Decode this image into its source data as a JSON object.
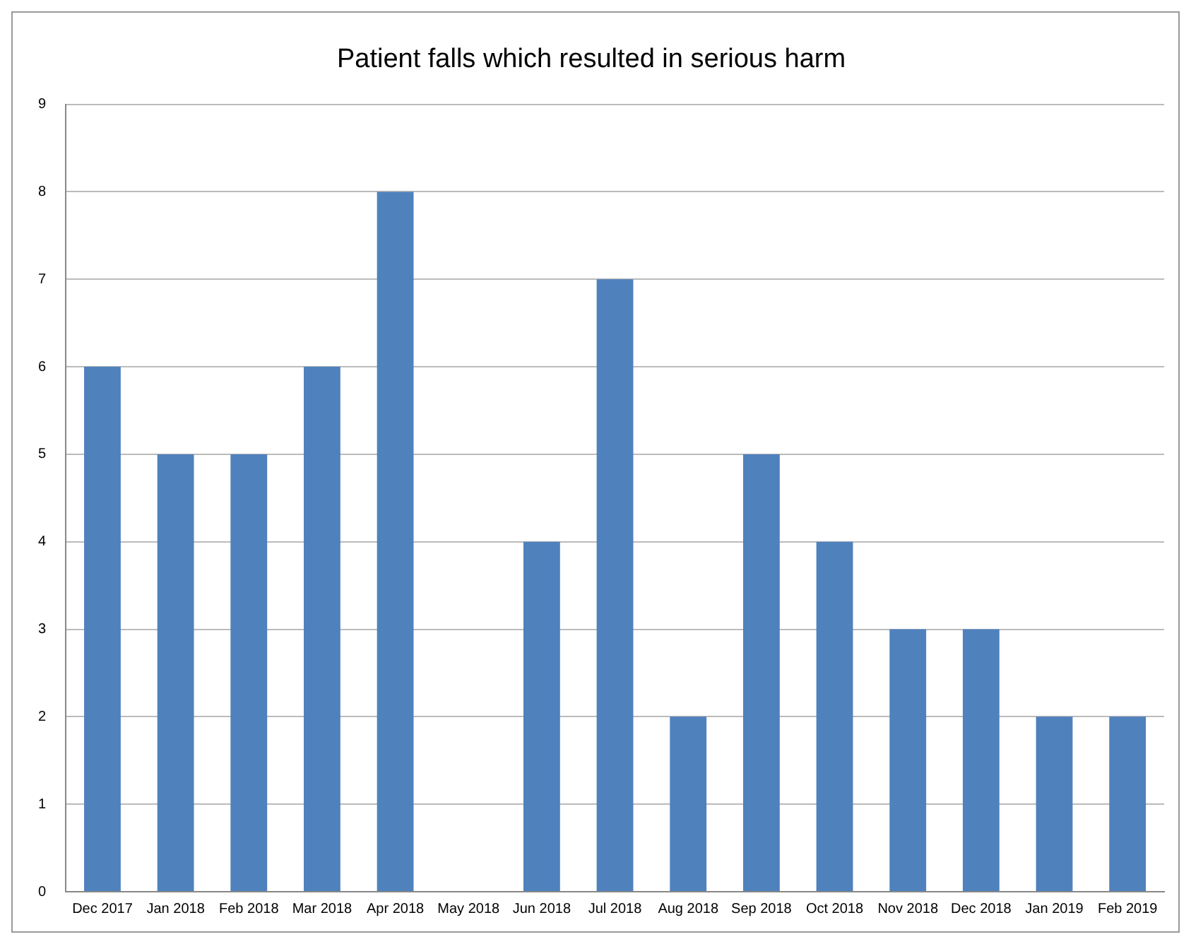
{
  "chart_data": {
    "type": "bar",
    "title": "Patient falls which resulted in serious harm",
    "categories": [
      "Dec 2017",
      "Jan 2018",
      "Feb 2018",
      "Mar 2018",
      "Apr 2018",
      "May 2018",
      "Jun 2018",
      "Jul 2018",
      "Aug 2018",
      "Sep 2018",
      "Oct 2018",
      "Nov 2018",
      "Dec 2018",
      "Jan 2019",
      "Feb 2019"
    ],
    "values": [
      6,
      5,
      5,
      6,
      8,
      0,
      4,
      7,
      2,
      5,
      4,
      3,
      3,
      2,
      2
    ],
    "color": "#4f81bd",
    "ylim": [
      0,
      9
    ],
    "yticks": [
      0,
      1,
      2,
      3,
      4,
      5,
      6,
      7,
      8,
      9
    ],
    "grid": "y",
    "legend": false
  }
}
